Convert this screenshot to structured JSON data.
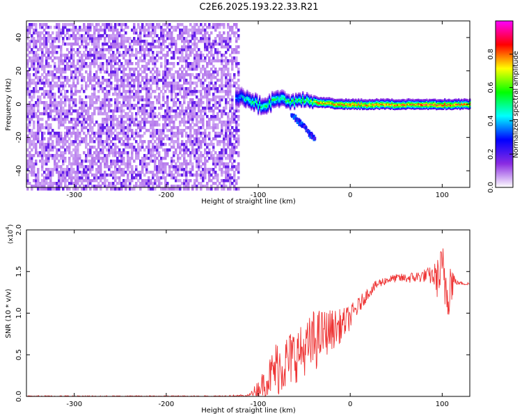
{
  "title": "C2E6.2025.193.22.33.R21",
  "chart_data": [
    {
      "type": "heatmap",
      "title": "C2E6.2025.193.22.33.R21",
      "xlabel": "Height of straight line (km)",
      "ylabel": "Frequency (Hz)",
      "xlim": [
        -352,
        130
      ],
      "ylim": [
        -50,
        50
      ],
      "x_ticks": [
        -300,
        -200,
        -100,
        0,
        100
      ],
      "x_tick_labels": [
        "-300",
        "-200",
        "-100",
        "0",
        "100"
      ],
      "y_ticks": [
        -40,
        -20,
        0,
        20,
        40
      ],
      "y_tick_labels": [
        "-40",
        "-20",
        "0",
        "20",
        "40"
      ],
      "colorbar": {
        "label": "Normalized spectral amplitude",
        "range": [
          0,
          1
        ],
        "ticks": [
          0.0,
          0.2,
          0.4,
          0.6,
          0.8
        ],
        "tick_labels": [
          "0.0",
          "0.2",
          "0.4",
          "0.6",
          "0.8"
        ],
        "colormap": [
          "#ffffff",
          "#8a2be2",
          "#0000ff",
          "#00ffff",
          "#00ff00",
          "#ffff00",
          "#ff0000",
          "#ff00ff"
        ]
      },
      "noise_region": {
        "x_range": [
          -352,
          -122
        ],
        "y_range": [
          -50,
          50
        ],
        "amplitude": 0.15
      },
      "signal_band": [
        {
          "x": -125,
          "freq": 5,
          "width": 6,
          "amplitude": 0.35
        },
        {
          "x": -115,
          "freq": 3,
          "width": 5,
          "amplitude": 0.5
        },
        {
          "x": -105,
          "freq": 1,
          "width": 5,
          "amplitude": 0.55
        },
        {
          "x": -95,
          "freq": -2,
          "width": 5,
          "amplitude": 0.55
        },
        {
          "x": -85,
          "freq": 2,
          "width": 5,
          "amplitude": 0.55
        },
        {
          "x": -75,
          "freq": 4,
          "width": 5,
          "amplitude": 0.55
        },
        {
          "x": -65,
          "freq": 1,
          "width": 4,
          "amplitude": 0.6
        },
        {
          "x": -55,
          "freq": 3,
          "width": 4,
          "amplitude": 0.6
        },
        {
          "x": -45,
          "freq": 2,
          "width": 4,
          "amplitude": 0.65
        },
        {
          "x": -35,
          "freq": 1,
          "width": 3,
          "amplitude": 0.85
        },
        {
          "x": -25,
          "freq": 1,
          "width": 3,
          "amplitude": 0.8
        },
        {
          "x": -15,
          "freq": 0,
          "width": 3,
          "amplitude": 0.85
        },
        {
          "x": -5,
          "freq": 0,
          "width": 3,
          "amplitude": 0.85
        },
        {
          "x": 5,
          "freq": 0,
          "width": 3,
          "amplitude": 0.85
        },
        {
          "x": 20,
          "freq": 0,
          "width": 3,
          "amplitude": 0.85
        },
        {
          "x": 40,
          "freq": 0,
          "width": 3,
          "amplitude": 0.85
        },
        {
          "x": 60,
          "freq": 0,
          "width": 3,
          "amplitude": 0.85
        },
        {
          "x": 80,
          "freq": 0,
          "width": 3,
          "amplitude": 0.9
        },
        {
          "x": 100,
          "freq": 0,
          "width": 3,
          "amplitude": 0.9
        },
        {
          "x": 120,
          "freq": 0,
          "width": 3,
          "amplitude": 0.85
        }
      ],
      "side_tail": {
        "x_range": [
          -65,
          -40
        ],
        "freq_range": [
          -5,
          -20
        ],
        "amplitude": 0.35
      }
    },
    {
      "type": "line",
      "xlabel": "Height of straight line (km)",
      "ylabel": "SNR (10 * v/v)",
      "y_multiplier_label": "(x10",
      "y_multiplier_exp": "4",
      "y_multiplier_close": ")",
      "xlim": [
        -352,
        130
      ],
      "ylim": [
        0,
        2.0
      ],
      "x_ticks": [
        -300,
        -200,
        -100,
        0,
        100
      ],
      "x_tick_labels": [
        "-300",
        "-200",
        "-100",
        "0",
        "100"
      ],
      "y_ticks": [
        0.0,
        0.5,
        1.0,
        1.5,
        2.0
      ],
      "y_tick_labels": [
        "0.0",
        "0.5",
        "1.0",
        "1.5",
        "2.0"
      ],
      "color": "#ee3333",
      "series": [
        {
          "x": [
            -352,
            -300,
            -250,
            -200,
            -150,
            -110,
            -100,
            -90,
            -80,
            -70,
            -60,
            -50,
            -40,
            -30,
            -20,
            -10,
            0,
            10,
            20,
            30,
            40,
            50,
            60,
            70,
            80,
            90,
            95,
            100,
            105,
            110,
            115,
            120,
            130
          ],
          "values": [
            0.0,
            0.0,
            0.0,
            0.0,
            0.0,
            0.01,
            0.1,
            0.2,
            0.35,
            0.4,
            0.5,
            0.55,
            0.65,
            0.75,
            0.8,
            0.85,
            0.95,
            1.1,
            1.25,
            1.35,
            1.4,
            1.42,
            1.42,
            1.43,
            1.45,
            1.45,
            1.42,
            1.5,
            1.3,
            1.4,
            1.37,
            1.36,
            1.35
          ],
          "noise": [
            0,
            0,
            0,
            0,
            0,
            0.01,
            0.1,
            0.2,
            0.35,
            0.35,
            0.35,
            0.3,
            0.4,
            0.3,
            0.25,
            0.2,
            0.15,
            0.1,
            0.07,
            0.06,
            0.05,
            0.05,
            0.06,
            0.07,
            0.08,
            0.12,
            0.25,
            0.35,
            0.45,
            0.3,
            0.03,
            0.02,
            0.02
          ]
        }
      ]
    }
  ]
}
